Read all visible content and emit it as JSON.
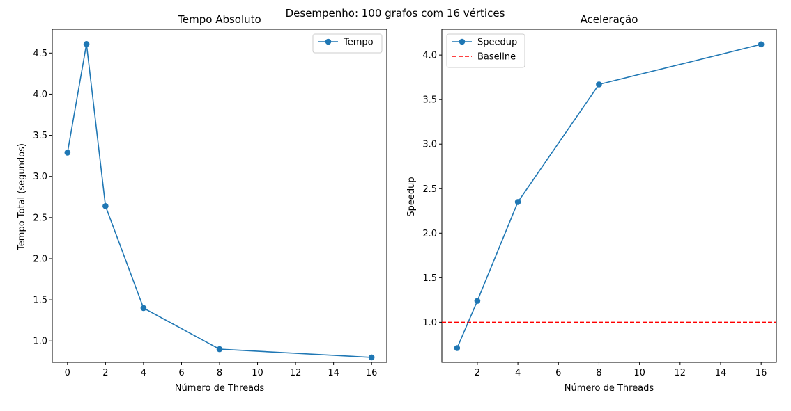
{
  "suptitle": "Desempenho: 100 grafos com 16 vértices",
  "chart_data": [
    {
      "type": "line",
      "title": "Tempo Absoluto",
      "xlabel": "Número de Threads",
      "ylabel": "Tempo Total (segundos)",
      "xlim": [
        -0.8,
        16.8
      ],
      "ylim": [
        0.74,
        4.79
      ],
      "xticks": [
        0,
        2,
        4,
        6,
        8,
        10,
        12,
        14,
        16
      ],
      "yticks": [
        1.0,
        1.5,
        2.0,
        2.5,
        3.0,
        3.5,
        4.0,
        4.5
      ],
      "grid": false,
      "legend_position": "upper right",
      "series": [
        {
          "name": "Tempo",
          "color": "#1f77b4",
          "marker": "circle",
          "x": [
            0,
            1,
            2,
            4,
            8,
            16
          ],
          "y": [
            3.29,
            4.61,
            2.64,
            1.4,
            0.9,
            0.8
          ]
        }
      ]
    },
    {
      "type": "line",
      "title": "Aceleração",
      "xlabel": "Número de Threads",
      "ylabel": "Speedup",
      "xlim": [
        0.25,
        16.75
      ],
      "ylim": [
        0.55,
        4.29
      ],
      "xticks": [
        2,
        4,
        6,
        8,
        10,
        12,
        14,
        16
      ],
      "yticks": [
        1.0,
        1.5,
        2.0,
        2.5,
        3.0,
        3.5,
        4.0
      ],
      "grid": false,
      "legend_position": "upper left",
      "series": [
        {
          "name": "Speedup",
          "color": "#1f77b4",
          "marker": "circle",
          "x": [
            1,
            2,
            4,
            8,
            16
          ],
          "y": [
            0.71,
            1.24,
            2.35,
            3.67,
            4.12
          ]
        }
      ],
      "hlines": [
        {
          "name": "Baseline",
          "y": 1.0,
          "color": "#ff0000",
          "style": "dashed"
        }
      ]
    }
  ]
}
